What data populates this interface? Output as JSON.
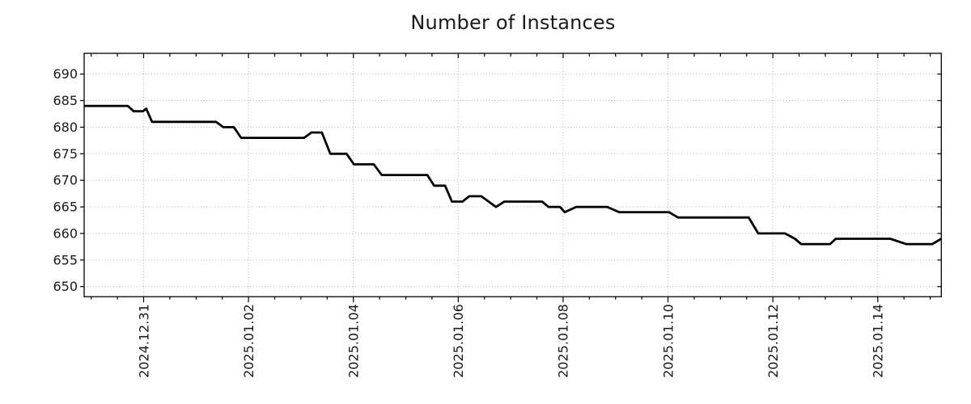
{
  "title": "Number of Instances",
  "chart_data": {
    "type": "line",
    "title": "Number of Instances",
    "legend": "none",
    "background": "#ffffff",
    "grid": {
      "style": "dotted",
      "color": "#b0b0b0"
    },
    "line_color": "#000000",
    "line_width": 2.8,
    "x_axis": {
      "label": "",
      "epoch_day0": "2024-12-30",
      "range_days": [
        -0.134,
        16.212
      ],
      "major_ticks_days": [
        1,
        3,
        5,
        7,
        9,
        11,
        13,
        15
      ],
      "tick_labels": [
        "2024.12.31",
        "2025.01.02",
        "2025.01.04",
        "2025.01.06",
        "2025.01.08",
        "2025.01.10",
        "2025.01.12",
        "2025.01.14"
      ],
      "minor_tick_interval_days": 0.5,
      "tick_label_rotation_deg": 90
    },
    "y_axis": {
      "label": "",
      "range": [
        648.1,
        693.9
      ],
      "ticks": [
        650,
        655,
        660,
        665,
        670,
        675,
        680,
        685,
        690
      ],
      "tick_labels": [
        "650",
        "655",
        "660",
        "665",
        "670",
        "675",
        "680",
        "685",
        "690"
      ]
    },
    "series": [
      {
        "name": "instances",
        "color": "#000000",
        "points": [
          [
            -0.13,
            684
          ],
          [
            0.7,
            684
          ],
          [
            0.81,
            683
          ],
          [
            0.99,
            683
          ],
          [
            1.05,
            683.5
          ],
          [
            1.16,
            681
          ],
          [
            2.38,
            681
          ],
          [
            2.52,
            680
          ],
          [
            2.72,
            680
          ],
          [
            2.86,
            678
          ],
          [
            4.06,
            678
          ],
          [
            4.2,
            679
          ],
          [
            4.4,
            679
          ],
          [
            4.56,
            675
          ],
          [
            4.87,
            675
          ],
          [
            5.01,
            673
          ],
          [
            5.39,
            673
          ],
          [
            5.54,
            671
          ],
          [
            6.41,
            671
          ],
          [
            6.54,
            669
          ],
          [
            6.75,
            669
          ],
          [
            6.88,
            666
          ],
          [
            7.08,
            666
          ],
          [
            7.21,
            667
          ],
          [
            7.44,
            667
          ],
          [
            7.72,
            665
          ],
          [
            7.88,
            666
          ],
          [
            8.6,
            666
          ],
          [
            8.72,
            665
          ],
          [
            8.94,
            665
          ],
          [
            9.03,
            664
          ],
          [
            9.25,
            665
          ],
          [
            9.84,
            665
          ],
          [
            10.07,
            664
          ],
          [
            11.02,
            664
          ],
          [
            11.19,
            663
          ],
          [
            12.54,
            663
          ],
          [
            12.72,
            660
          ],
          [
            13.23,
            660
          ],
          [
            13.42,
            659
          ],
          [
            13.54,
            658
          ],
          [
            14.09,
            658
          ],
          [
            14.2,
            659
          ],
          [
            15.24,
            659
          ],
          [
            15.54,
            658
          ],
          [
            16.04,
            658
          ],
          [
            16.21,
            659
          ]
        ]
      }
    ]
  }
}
